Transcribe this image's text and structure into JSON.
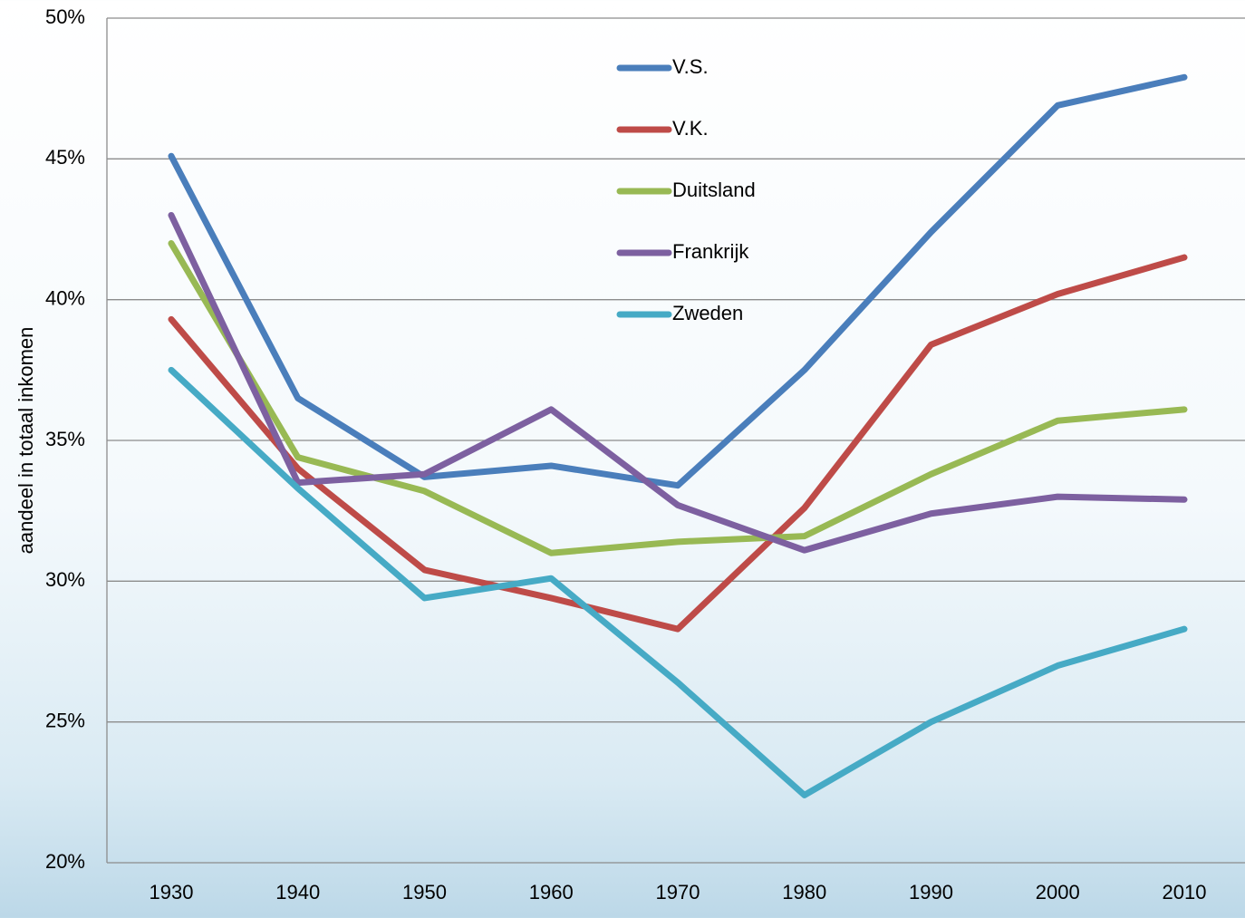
{
  "chart_data": {
    "type": "line",
    "y_label": "aandeel in totaal inkomen",
    "categories": [
      "1930",
      "1940",
      "1950",
      "1960",
      "1970",
      "1980",
      "1990",
      "2000",
      "2010"
    ],
    "series": [
      {
        "name": "V.S.",
        "color": "#4a7ebb",
        "values": [
          45.1,
          36.5,
          33.7,
          34.1,
          33.4,
          37.5,
          42.4,
          46.9,
          47.9
        ]
      },
      {
        "name": "V.K.",
        "color": "#be4b48",
        "values": [
          39.3,
          34.0,
          30.4,
          29.4,
          28.3,
          32.6,
          38.4,
          40.2,
          41.5
        ]
      },
      {
        "name": "Duitsland",
        "color": "#98b954",
        "values": [
          42.0,
          34.4,
          33.2,
          31.0,
          31.4,
          31.6,
          33.8,
          35.7,
          36.1
        ]
      },
      {
        "name": "Frankrijk",
        "color": "#7d60a0",
        "values": [
          43.0,
          33.5,
          33.8,
          36.1,
          32.7,
          31.1,
          32.4,
          33.0,
          32.9
        ]
      },
      {
        "name": "Zweden",
        "color": "#46aac5",
        "values": [
          37.5,
          33.3,
          29.4,
          30.1,
          26.4,
          22.4,
          25.0,
          27.0,
          28.3
        ]
      }
    ],
    "ylim": [
      20,
      50
    ],
    "yticks": [
      {
        "value": 20,
        "label": "20%"
      },
      {
        "value": 25,
        "label": "25%"
      },
      {
        "value": 30,
        "label": "30%"
      },
      {
        "value": 35,
        "label": "35%"
      },
      {
        "value": 40,
        "label": "40%"
      },
      {
        "value": 45,
        "label": "45%"
      },
      {
        "value": 50,
        "label": "50%"
      }
    ],
    "grid": true,
    "legend": "top"
  }
}
